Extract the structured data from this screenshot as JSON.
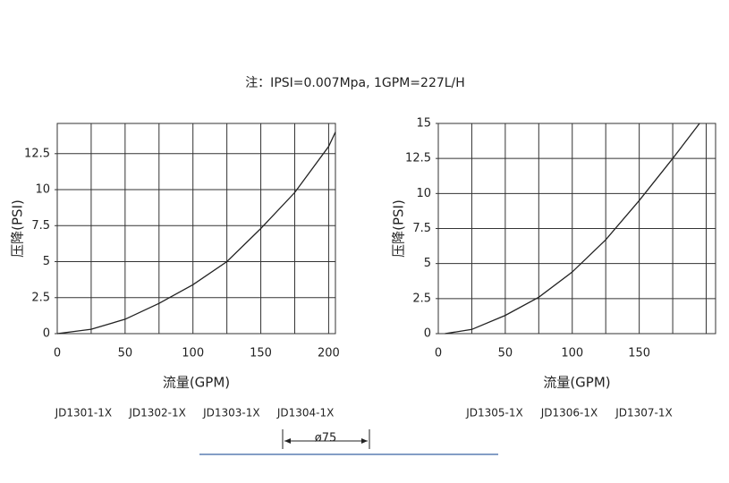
{
  "note": "注：IPSI=0.007Mpa, 1GPM=227L/H",
  "dimension": "ø75",
  "chart_data": [
    {
      "type": "line",
      "xlabel": "流量(GPM)",
      "ylabel": "压降(PSI)",
      "xlim": [
        0,
        205
      ],
      "ylim": [
        0,
        14.6
      ],
      "xticks": [
        0,
        50,
        100,
        150,
        200
      ],
      "yticks": [
        0,
        2.5,
        5,
        7.5,
        10,
        12.5
      ],
      "x_grid": [
        25,
        50,
        75,
        100,
        125,
        150,
        175,
        200
      ],
      "y_grid": [
        2.5,
        5,
        7.5,
        10,
        12.5
      ],
      "series": [
        {
          "color": "#222222",
          "x": [
            0,
            25,
            50,
            75,
            100,
            125,
            150,
            175,
            200,
            205
          ],
          "values": [
            0,
            0.3,
            1.0,
            2.1,
            3.4,
            5.0,
            7.3,
            9.8,
            13.0,
            14.0
          ]
        }
      ],
      "models": [
        "JD1301-1X",
        "JD1302-1X",
        "JD1303-1X",
        "JD1304-1X"
      ]
    },
    {
      "type": "line",
      "xlabel": "流量(GPM)",
      "ylabel": "压降(PSI)",
      "xlim": [
        0,
        207
      ],
      "ylim": [
        0,
        15
      ],
      "xticks": [
        0,
        50,
        100,
        150
      ],
      "yticks": [
        0,
        2.5,
        5,
        7.5,
        10,
        12.5,
        15
      ],
      "x_grid": [
        25,
        50,
        75,
        100,
        125,
        150,
        175,
        200
      ],
      "y_grid": [
        2.5,
        5,
        7.5,
        10,
        12.5
      ],
      "series": [
        {
          "color": "#222222",
          "x": [
            5,
            25,
            50,
            75,
            100,
            125,
            150,
            175,
            195
          ],
          "values": [
            0,
            0.3,
            1.3,
            2.6,
            4.4,
            6.7,
            9.5,
            12.5,
            15
          ]
        }
      ],
      "models": [
        "JD1305-1X",
        "JD1306-1X",
        "JD1307-1X"
      ]
    }
  ]
}
